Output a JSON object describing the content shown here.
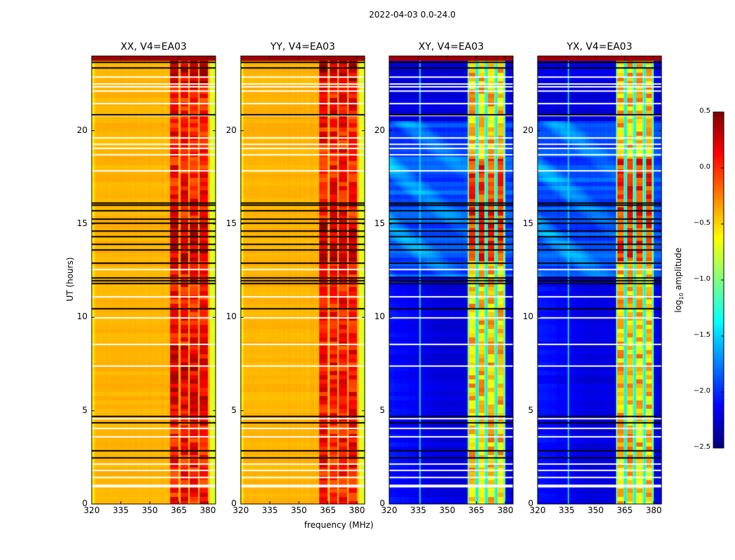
{
  "chart_data": {
    "type": "heatmap",
    "title": "2022-04-03 0.0-24.0",
    "xlabel": "frequency (MHz)",
    "ylabel": "UT (hours)",
    "xlim": [
      320,
      384
    ],
    "ylim": [
      0,
      24
    ],
    "xticks": [
      "320",
      "335",
      "350",
      "365",
      "380"
    ],
    "xtick_values": [
      320,
      335,
      350,
      365,
      380
    ],
    "yticks": [
      "0",
      "5",
      "10",
      "15",
      "20"
    ],
    "ytick_values": [
      0,
      5,
      10,
      15,
      20
    ],
    "panels": [
      {
        "title": "XX, V4=EA03",
        "pol": "XX",
        "kind": "parallel"
      },
      {
        "title": "YY, V4=EA03",
        "pol": "YY",
        "kind": "parallel"
      },
      {
        "title": "XY, V4=EA03",
        "pol": "XY",
        "kind": "cross"
      },
      {
        "title": "YX, V4=EA03",
        "pol": "YX",
        "kind": "cross"
      }
    ],
    "bright_band_mhz": [
      360.5,
      380
    ],
    "subband_gaps_mhz": [
      365.3,
      370.2,
      375.3
    ],
    "flagged_scan_boundaries_hours": [
      2.47,
      2.85,
      4.35,
      4.69,
      10.46,
      11.81,
      11.96,
      12.11,
      12.9,
      13.61,
      13.91,
      14.32,
      14.62,
      15.04,
      15.26,
      15.71,
      16.01,
      16.12,
      20.85,
      23.36,
      23.66
    ],
    "flagged_gaps_hours": [
      1.0,
      1.42,
      1.8,
      2.14,
      3.6,
      4.05,
      4.57,
      7.39,
      8.55,
      9.97,
      11.1,
      12.56,
      17.85,
      18.71,
      19.05,
      19.27,
      19.61,
      20.81,
      21.45,
      22.12,
      22.35,
      22.5,
      22.87
    ],
    "colorbar": {
      "label": "log10 amplitude",
      "label_main": "log",
      "label_sub": "10",
      "label_rest": " amplitude",
      "colormap": "jet",
      "range": [
        -2.5,
        0.5
      ],
      "ticks": [
        "0.5",
        "0.0",
        "−0.5",
        "−1.0",
        "−1.5",
        "−2.0",
        "−2.5"
      ],
      "tick_values": [
        0.5,
        0.0,
        -0.5,
        -1.0,
        -1.5,
        -2.0,
        -2.5
      ]
    }
  }
}
